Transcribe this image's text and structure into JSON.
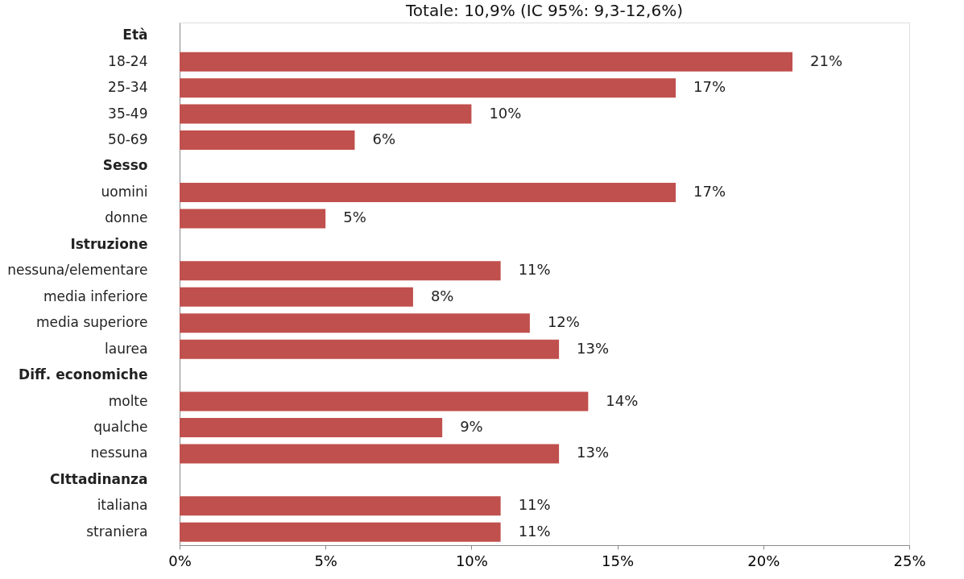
{
  "chart_data": {
    "type": "bar",
    "orientation": "horizontal",
    "title": "Totale: 10,9% (IC 95%: 9,3-12,6%)",
    "categories": [
      "Età",
      "18-24",
      "25-34",
      "35-49",
      "50-69",
      "Sesso",
      "uomini",
      "donne",
      "Istruzione",
      "nessuna/elementare",
      "media inferiore",
      "media superiore",
      "laurea",
      "Diff. economiche",
      "molte",
      "qualche",
      "nessuna",
      "CIttadinanza",
      "italiana",
      "straniera"
    ],
    "values": [
      null,
      21,
      17,
      10,
      6,
      null,
      17,
      5,
      null,
      11,
      8,
      12,
      13,
      null,
      14,
      9,
      13,
      null,
      11,
      11
    ],
    "value_labels": [
      null,
      "21%",
      "17%",
      "10%",
      "6%",
      null,
      "17%",
      "5%",
      null,
      "11%",
      "8%",
      "12%",
      "13%",
      null,
      "14%",
      "9%",
      "13%",
      null,
      "11%",
      "11%"
    ],
    "color": "#c0504d",
    "xlim": [
      0,
      25
    ],
    "xticks": [
      {
        "value": 0,
        "label": "0%"
      },
      {
        "value": 5,
        "label": "5%"
      },
      {
        "value": 10,
        "label": "10%"
      },
      {
        "value": 15,
        "label": "15%"
      },
      {
        "value": 20,
        "label": "20%"
      },
      {
        "value": 25,
        "label": "25%"
      }
    ],
    "grid": false
  }
}
